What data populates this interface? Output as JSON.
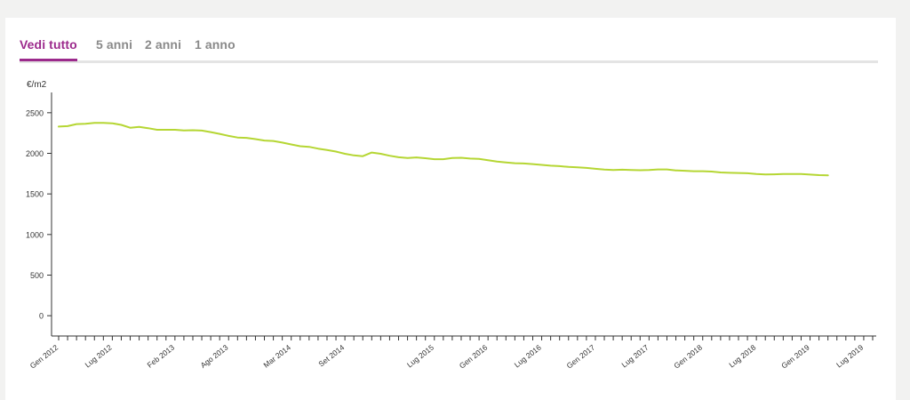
{
  "tabs": [
    {
      "label": "Vedi tutto",
      "active": true
    },
    {
      "label": "5 anni",
      "active": false
    },
    {
      "label": "2 anni",
      "active": false
    },
    {
      "label": "1 anno",
      "active": false
    }
  ],
  "colors": {
    "accent": "#9c2a8c",
    "line": "#b5d633",
    "tab_inactive": "#8a8a8a",
    "axis": "#333333"
  },
  "chart_data": {
    "type": "line",
    "ylabel": "€/m2",
    "ylim": [
      -250,
      2750
    ],
    "yticks": [
      0,
      500,
      1000,
      1500,
      2000,
      2500
    ],
    "x_range_months": [
      "2012-01",
      "2019-08"
    ],
    "x_tick_labels": [
      {
        "label": "Gen 2012",
        "date": "2012-01"
      },
      {
        "label": "Lug 2012",
        "date": "2012-07"
      },
      {
        "label": "Feb 2013",
        "date": "2013-02"
      },
      {
        "label": "Ago 2013",
        "date": "2013-08"
      },
      {
        "label": "Mar 2014",
        "date": "2014-03"
      },
      {
        "label": "Set 2014",
        "date": "2014-09"
      },
      {
        "label": "Lug 2015",
        "date": "2015-07"
      },
      {
        "label": "Gen 2016",
        "date": "2016-01"
      },
      {
        "label": "Lug 2016",
        "date": "2016-07"
      },
      {
        "label": "Gen 2017",
        "date": "2017-01"
      },
      {
        "label": "Lug 2017",
        "date": "2017-07"
      },
      {
        "label": "Gen 2018",
        "date": "2018-01"
      },
      {
        "label": "Lug 2018",
        "date": "2018-07"
      },
      {
        "label": "Gen 2019",
        "date": "2019-01"
      },
      {
        "label": "Lug 2019",
        "date": "2019-07"
      }
    ],
    "series": [
      {
        "points": [
          [
            "2012-01",
            2330
          ],
          [
            "2012-02",
            2335
          ],
          [
            "2012-03",
            2360
          ],
          [
            "2012-04",
            2365
          ],
          [
            "2012-05",
            2375
          ],
          [
            "2012-06",
            2375
          ],
          [
            "2012-07",
            2370
          ],
          [
            "2012-08",
            2350
          ],
          [
            "2012-09",
            2315
          ],
          [
            "2012-10",
            2325
          ],
          [
            "2012-11",
            2310
          ],
          [
            "2012-12",
            2290
          ],
          [
            "2013-01",
            2290
          ],
          [
            "2013-02",
            2290
          ],
          [
            "2013-03",
            2282
          ],
          [
            "2013-04",
            2285
          ],
          [
            "2013-05",
            2280
          ],
          [
            "2013-06",
            2262
          ],
          [
            "2013-07",
            2240
          ],
          [
            "2013-08",
            2215
          ],
          [
            "2013-09",
            2195
          ],
          [
            "2013-10",
            2190
          ],
          [
            "2013-11",
            2175
          ],
          [
            "2013-12",
            2158
          ],
          [
            "2014-01",
            2152
          ],
          [
            "2014-02",
            2132
          ],
          [
            "2014-03",
            2110
          ],
          [
            "2014-04",
            2088
          ],
          [
            "2014-05",
            2080
          ],
          [
            "2014-06",
            2058
          ],
          [
            "2014-07",
            2040
          ],
          [
            "2014-08",
            2022
          ],
          [
            "2014-09",
            1995
          ],
          [
            "2014-10",
            1975
          ],
          [
            "2014-11",
            1965
          ],
          [
            "2014-12",
            2010
          ],
          [
            "2015-01",
            1995
          ],
          [
            "2015-02",
            1970
          ],
          [
            "2015-03",
            1952
          ],
          [
            "2015-04",
            1942
          ],
          [
            "2015-05",
            1950
          ],
          [
            "2015-06",
            1940
          ],
          [
            "2015-07",
            1928
          ],
          [
            "2015-08",
            1928
          ],
          [
            "2015-09",
            1942
          ],
          [
            "2015-10",
            1945
          ],
          [
            "2015-11",
            1935
          ],
          [
            "2015-12",
            1932
          ],
          [
            "2016-01",
            1915
          ],
          [
            "2016-02",
            1898
          ],
          [
            "2016-03",
            1888
          ],
          [
            "2016-04",
            1878
          ],
          [
            "2016-05",
            1875
          ],
          [
            "2016-06",
            1868
          ],
          [
            "2016-07",
            1858
          ],
          [
            "2016-08",
            1848
          ],
          [
            "2016-09",
            1842
          ],
          [
            "2016-10",
            1832
          ],
          [
            "2016-11",
            1828
          ],
          [
            "2016-12",
            1820
          ],
          [
            "2017-01",
            1810
          ],
          [
            "2017-02",
            1800
          ],
          [
            "2017-03",
            1795
          ],
          [
            "2017-04",
            1798
          ],
          [
            "2017-05",
            1795
          ],
          [
            "2017-06",
            1792
          ],
          [
            "2017-07",
            1795
          ],
          [
            "2017-08",
            1802
          ],
          [
            "2017-09",
            1802
          ],
          [
            "2017-10",
            1790
          ],
          [
            "2017-11",
            1785
          ],
          [
            "2017-12",
            1780
          ],
          [
            "2018-01",
            1780
          ],
          [
            "2018-02",
            1775
          ],
          [
            "2018-03",
            1765
          ],
          [
            "2018-04",
            1760
          ],
          [
            "2018-05",
            1758
          ],
          [
            "2018-06",
            1755
          ],
          [
            "2018-07",
            1745
          ],
          [
            "2018-08",
            1740
          ],
          [
            "2018-09",
            1742
          ],
          [
            "2018-10",
            1745
          ],
          [
            "2018-11",
            1745
          ],
          [
            "2018-12",
            1745
          ],
          [
            "2019-01",
            1738
          ],
          [
            "2019-02",
            1732
          ],
          [
            "2019-03",
            1728
          ]
        ]
      }
    ]
  }
}
